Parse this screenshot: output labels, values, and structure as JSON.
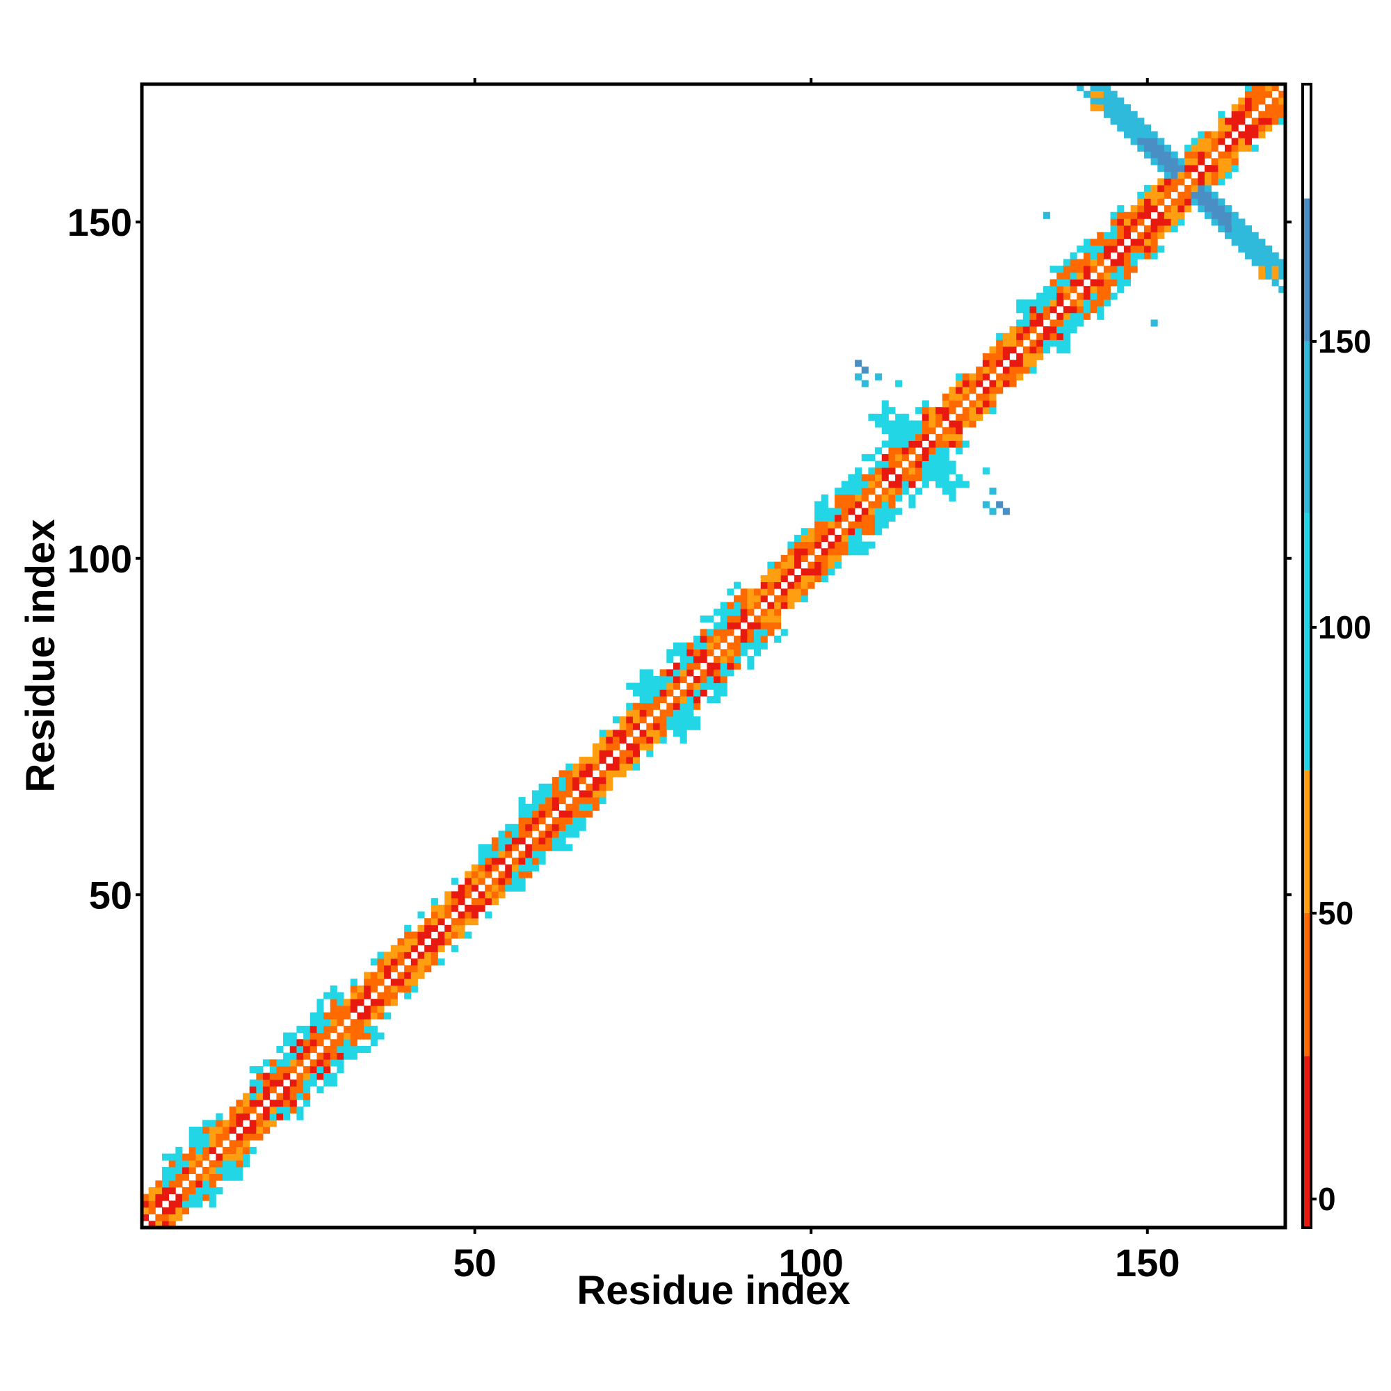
{
  "chart_data": {
    "type": "heatmap",
    "title": "",
    "xlabel": "Residue index",
    "ylabel": "Residue index",
    "xlim": [
      1,
      170
    ],
    "ylim": [
      1,
      170
    ],
    "xticks": [
      50,
      100,
      150
    ],
    "yticks": [
      50,
      100,
      150
    ],
    "grid": false,
    "legend": "colorbar right",
    "colorbar": {
      "ticks": [
        0,
        50,
        100,
        150
      ],
      "range": [
        -5,
        195
      ],
      "bands": [
        {
          "from": -5,
          "to": 25,
          "color": "#e81a10"
        },
        {
          "from": 25,
          "to": 50,
          "color": "#ff6a00"
        },
        {
          "from": 50,
          "to": 75,
          "color": "#ff9e10"
        },
        {
          "from": 75,
          "to": 120,
          "color": "#22d6e6"
        },
        {
          "from": 120,
          "to": 150,
          "color": "#2fbadc"
        },
        {
          "from": 150,
          "to": 175,
          "color": "#4a8fc4"
        },
        {
          "from": 175,
          "to": 195,
          "color": "#ffffff"
        }
      ]
    },
    "colors": {
      "red": "#e81a10",
      "orange_red": "#ff6a00",
      "orange": "#ff9e10",
      "cyan": "#22d6e6",
      "light_blue": "#2fbadc",
      "steel_blue": "#4a8fc4"
    },
    "segments": [
      {
        "from": 1,
        "to": 3,
        "pattern": "helix"
      },
      {
        "from": 4,
        "to": 10,
        "pattern": "strand"
      },
      {
        "from": 11,
        "to": 16,
        "pattern": "helix"
      },
      {
        "from": 17,
        "to": 30,
        "pattern": "strand"
      },
      {
        "from": 31,
        "to": 44,
        "pattern": "helix"
      },
      {
        "from": 45,
        "to": 50,
        "pattern": "helix"
      },
      {
        "from": 51,
        "to": 63,
        "pattern": "strand"
      },
      {
        "from": 64,
        "to": 75,
        "pattern": "helix"
      },
      {
        "from": 76,
        "to": 90,
        "pattern": "strand"
      },
      {
        "from": 91,
        "to": 100,
        "pattern": "helix"
      },
      {
        "from": 101,
        "to": 117,
        "pattern": "strand"
      },
      {
        "from": 118,
        "to": 130,
        "pattern": "helix"
      },
      {
        "from": 131,
        "to": 146,
        "pattern": "strand"
      },
      {
        "from": 147,
        "to": 156,
        "pattern": "helix"
      },
      {
        "from": 157,
        "to": 169,
        "pattern": "helix"
      }
    ],
    "antidiagonal_clusters": [
      {
        "center": [
          156,
          156
        ],
        "extent": 14,
        "color": "#2fbadc",
        "core_color": "#4a8fc4"
      },
      {
        "center": [
          116,
          116
        ],
        "extent": 5,
        "color": "#22d6e6",
        "core_color": "#22d6e6"
      },
      {
        "center": [
          78,
          78
        ],
        "extent": 3,
        "color": "#22d6e6",
        "core_color": "#22d6e6"
      }
    ],
    "isolated_points": [
      {
        "x": 108,
        "y": 128,
        "color": "#4a8fc4"
      },
      {
        "x": 108,
        "y": 126,
        "color": "#2fbadc"
      },
      {
        "x": 113,
        "y": 126,
        "color": "#22d6e6"
      },
      {
        "x": 127,
        "y": 110,
        "color": "#2fbadc"
      },
      {
        "x": 127,
        "y": 107,
        "color": "#2fbadc"
      },
      {
        "x": 129,
        "y": 107,
        "color": "#4a8fc4"
      },
      {
        "x": 135,
        "y": 151,
        "color": "#2fbadc"
      },
      {
        "x": 151,
        "y": 135,
        "color": "#2fbadc"
      },
      {
        "x": 142,
        "y": 167,
        "color": "#ff9e10"
      },
      {
        "x": 169,
        "y": 142,
        "color": "#ff9e10"
      },
      {
        "x": 143,
        "y": 169,
        "color": "#ff9e10"
      },
      {
        "x": 167,
        "y": 143,
        "color": "#ff9e10"
      }
    ]
  }
}
